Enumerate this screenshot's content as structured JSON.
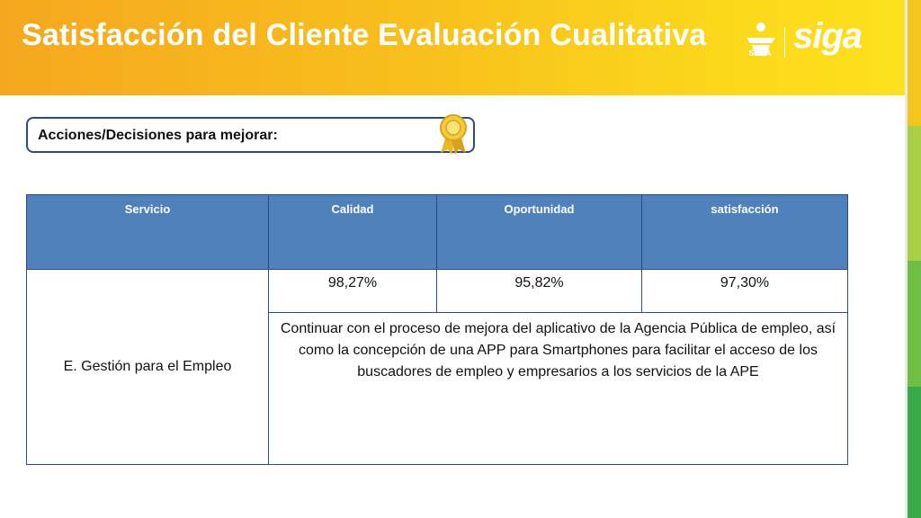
{
  "header": {
    "title": "Satisfacción del Cliente Evaluación Cualitativa",
    "logo_sena": "SENA",
    "logo_siga": "siga",
    "colors": {
      "gradient_start": "#f5a81e",
      "gradient_end": "#fde11e"
    }
  },
  "actions": {
    "label": "Acciones/Decisiones para mejorar:",
    "icon": "award-ribbon-icon"
  },
  "table": {
    "headers": [
      "Servicio",
      "Calidad",
      "Oportunidad",
      "satisfacción"
    ],
    "service": "E. Gestión para el Empleo",
    "values": [
      "98,27%",
      "95,82%",
      "97,30%"
    ],
    "note": "Continuar con el proceso de mejora del aplicativo de la Agencia Pública de empleo, así como la concepción de una APP para Smartphones  para facilitar el acceso de los buscadores de empleo y empresarios a los servicios de la APE",
    "header_color": "#4f81bd",
    "border_color": "#2f4b7c"
  },
  "stripe_colors": [
    "#f2c21b",
    "#8cc63f",
    "#4caf50",
    "#2e9a3e"
  ]
}
